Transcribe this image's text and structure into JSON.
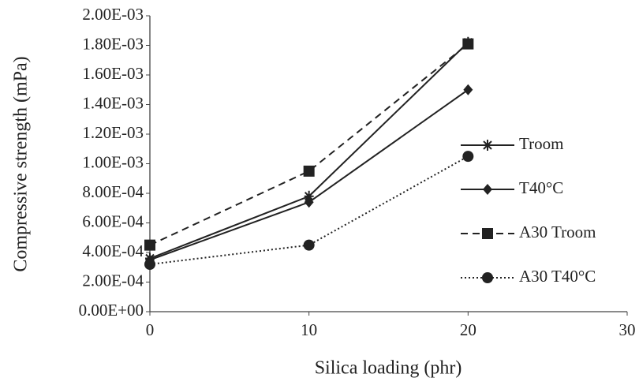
{
  "chart_data": {
    "type": "line",
    "x_label": "Silica loading (phr)",
    "y_label": "Compressive strength (mPa)",
    "x": [
      0,
      10,
      20
    ],
    "series": [
      {
        "name": "Troom",
        "color": "#222222",
        "marker": "asterisk",
        "dash": "solid",
        "values": [
          0.00036,
          0.00078,
          0.00182
        ]
      },
      {
        "name": "T40°C",
        "color": "#222222",
        "marker": "diamond",
        "dash": "solid",
        "values": [
          0.00035,
          0.00074,
          0.0015
        ]
      },
      {
        "name": "A30 Troom",
        "color": "#222222",
        "marker": "square",
        "dash": "dashed",
        "values": [
          0.00045,
          0.00095,
          0.00181
        ]
      },
      {
        "name": "A30 T40°C",
        "color": "#222222",
        "marker": "circle",
        "dash": "dotted",
        "values": [
          0.00032,
          0.00045,
          0.00105
        ]
      }
    ],
    "xlim": [
      0,
      30
    ],
    "xticks": [
      0,
      10,
      20,
      30
    ],
    "ylim": [
      0,
      0.002
    ],
    "yticks": [
      {
        "value": 0,
        "label": "0.00E+00"
      },
      {
        "value": 0.0002,
        "label": "2.00E-04"
      },
      {
        "value": 0.0004,
        "label": "4.00E-04"
      },
      {
        "value": 0.0006,
        "label": "6.00E-04"
      },
      {
        "value": 0.0008,
        "label": "8.00E-04"
      },
      {
        "value": 0.001,
        "label": "1.00E-03"
      },
      {
        "value": 0.0012,
        "label": "1.20E-03"
      },
      {
        "value": 0.0014,
        "label": "1.40E-03"
      },
      {
        "value": 0.0016,
        "label": "1.60E-03"
      },
      {
        "value": 0.0018,
        "label": "1.80E-03"
      },
      {
        "value": 0.002,
        "label": "2.00E-03"
      }
    ],
    "grid": false,
    "legend_position": "right"
  }
}
